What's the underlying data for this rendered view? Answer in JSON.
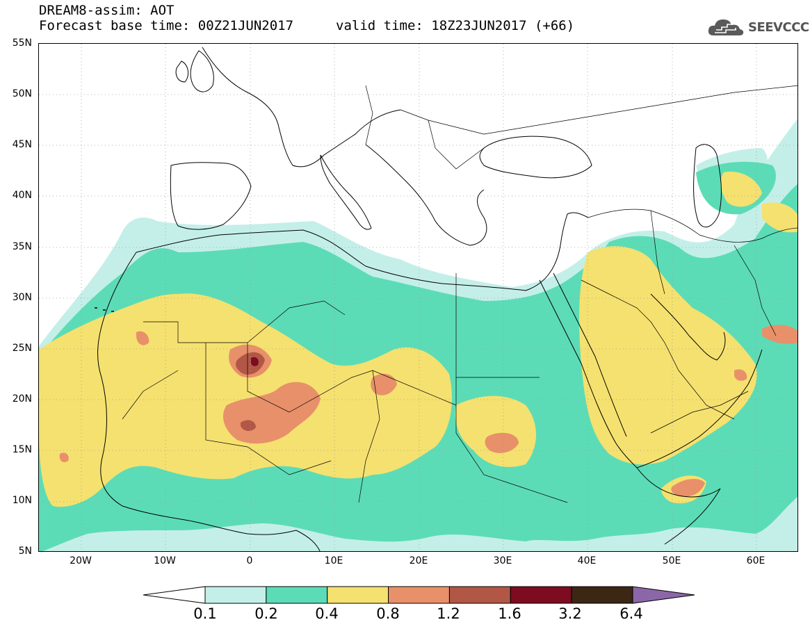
{
  "header": {
    "title_line1": "DREAM8-assim: AOT",
    "title_line2": "Forecast base time: 00Z21JUN2017",
    "valid_time": "valid time: 18Z23JUN2017 (+66)"
  },
  "logo": {
    "text": "SEEVCCC",
    "icon": "cloud-logo-icon"
  },
  "map": {
    "lat_labels": [
      "55N",
      "50N",
      "45N",
      "40N",
      "35N",
      "30N",
      "25N",
      "20N",
      "15N",
      "10N",
      "5N"
    ],
    "lon_labels": [
      "20W",
      "10W",
      "0",
      "10E",
      "20E",
      "30E",
      "40E",
      "50E",
      "60E"
    ],
    "grid": true
  },
  "legend": {
    "thresholds": [
      "0.1",
      "0.2",
      "0.4",
      "0.8",
      "1.2",
      "1.6",
      "3.2",
      "6.4"
    ],
    "colors": [
      "#ffffff",
      "#c4efe9",
      "#5cdcb6",
      "#f5e16f",
      "#e8906a",
      "#b25746",
      "#7d0c20",
      "#3c2614",
      "#8b67a8"
    ]
  },
  "colors": {
    "ocean": "#ffffff",
    "level_1": "#c4efe9",
    "level_2": "#5cdcb6",
    "level_3": "#f5e16f",
    "level_4": "#e8906a",
    "level_5": "#b25746",
    "level_6": "#7d0c20",
    "level_7": "#3c2614",
    "level_8": "#8b67a8"
  }
}
